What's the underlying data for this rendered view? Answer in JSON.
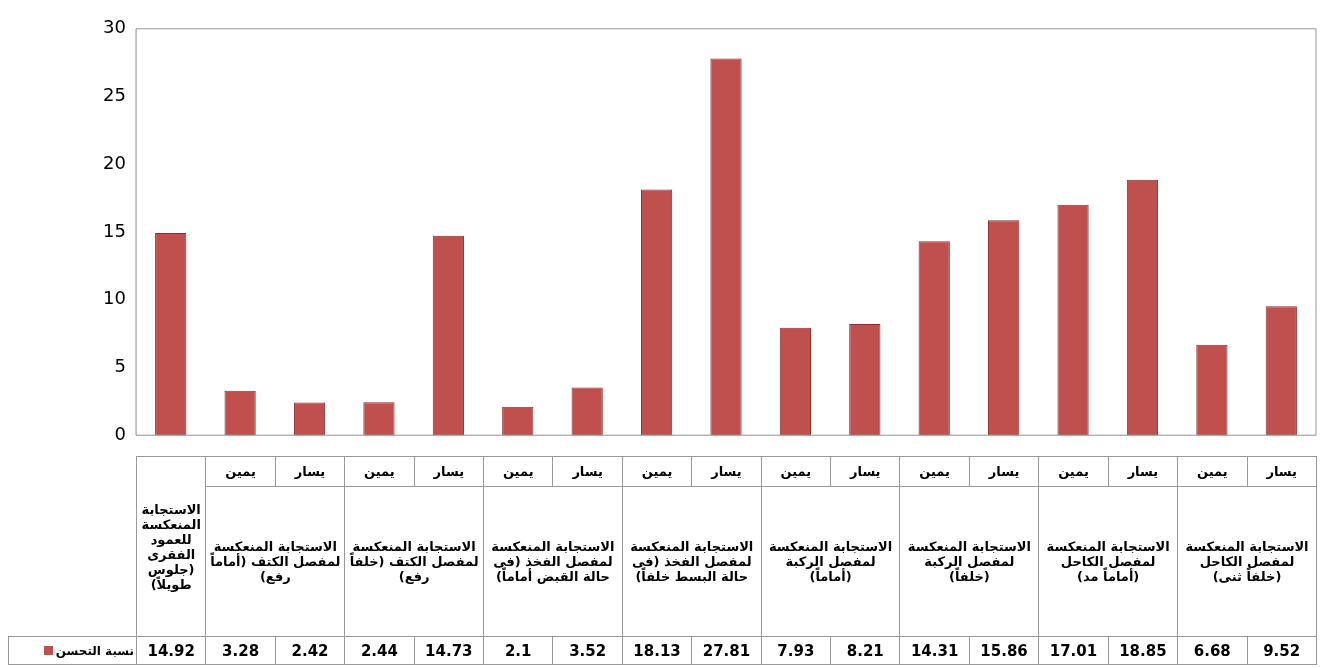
{
  "chart_data": {
    "type": "bar",
    "categories": [
      null,
      "يمين",
      "يسار",
      "يمين",
      "يسار",
      "يمين",
      "يسار",
      "يمين",
      "يسار",
      "يمين",
      "يسار",
      "يمين",
      "يسار",
      "يمين",
      "يسار",
      "يمين",
      "يسار"
    ],
    "annotations": [
      "الاستجابة المنعكسة للعمود الفقرى (جلوس طويلاً)",
      "الاستجابة المنعكسة لمفصل الكتف (أماماً رفع)",
      "الاستجابة المنعكسة لمفصل الكتف (خلفاً رفع)",
      "الاستجابة المنعكسة لمفصل الفخذ (فى حالة القبض أماماً)",
      "الاستجابة المنعكسة لمفصل الفخذ (فى حالة البسط خلفاً)",
      "الاستجابة المنعكسة لمفصل الركبة (أماماً)",
      "الاستجابة المنعكسة لمفصل الركبة (خلفاً)",
      "الاستجابة المنعكسة لمفصل الكاحل (أماماً مد)",
      "الاستجابة المنعكسة لمفصل الكاحل (خلفاً ثنى)"
    ],
    "series": [
      {
        "name": "نسبة التحسن",
        "color": "#c0504d",
        "values": [
          14.92,
          3.28,
          2.42,
          2.44,
          14.73,
          2.1,
          3.52,
          18.13,
          27.81,
          7.93,
          8.21,
          14.31,
          15.86,
          17.01,
          18.85,
          6.68,
          9.52
        ]
      }
    ],
    "ylim": [
      0,
      30
    ],
    "yticks": [
      0,
      5,
      10,
      15,
      20,
      25,
      30
    ],
    "grid": false,
    "data_labels": true,
    "legend": "bottom left"
  }
}
